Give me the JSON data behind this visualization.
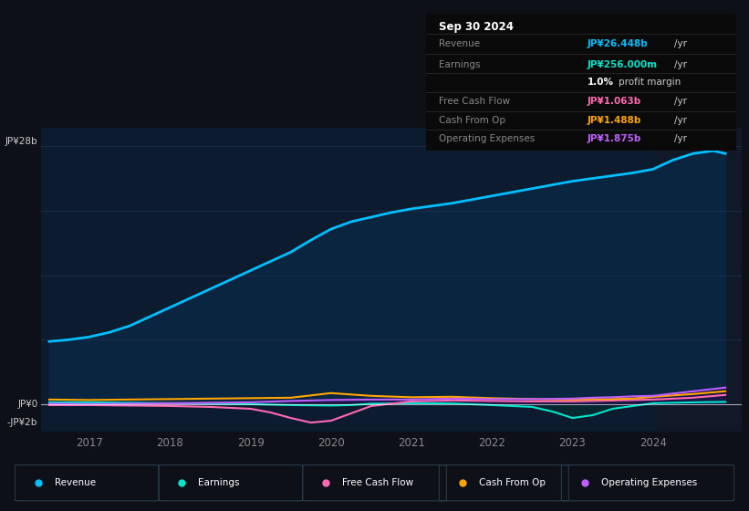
{
  "bg_color": "#0d1117",
  "plot_bg_color": "#0d1b2e",
  "grid_color": "#1e3050",
  "title_date": "Sep 30 2024",
  "y_label_top": "JP¥28b",
  "y_label_zero": "JP¥0",
  "y_label_neg": "-JP¥2b",
  "ylim_min": -3.0,
  "ylim_max": 30.0,
  "x_ticks": [
    2017,
    2018,
    2019,
    2020,
    2021,
    2022,
    2023,
    2024
  ],
  "shade_start_x": 2024.05,
  "revenue": {
    "x": [
      2016.5,
      2016.75,
      2017.0,
      2017.25,
      2017.5,
      2017.75,
      2018.0,
      2018.25,
      2018.5,
      2018.75,
      2019.0,
      2019.25,
      2019.5,
      2019.75,
      2020.0,
      2020.25,
      2020.5,
      2020.75,
      2021.0,
      2021.25,
      2021.5,
      2021.75,
      2022.0,
      2022.25,
      2022.5,
      2022.75,
      2023.0,
      2023.25,
      2023.5,
      2023.75,
      2024.0,
      2024.25,
      2024.5,
      2024.75,
      2024.9
    ],
    "y": [
      6.8,
      7.0,
      7.3,
      7.8,
      8.5,
      9.5,
      10.5,
      11.5,
      12.5,
      13.5,
      14.5,
      15.5,
      16.5,
      17.8,
      19.0,
      19.8,
      20.3,
      20.8,
      21.2,
      21.5,
      21.8,
      22.2,
      22.6,
      23.0,
      23.4,
      23.8,
      24.2,
      24.5,
      24.8,
      25.1,
      25.5,
      26.5,
      27.2,
      27.5,
      27.2
    ],
    "color": "#00bfff",
    "fill_color": "#0a2540",
    "linewidth": 2.0
  },
  "earnings": {
    "x": [
      2016.5,
      2017.0,
      2017.5,
      2018.0,
      2018.5,
      2019.0,
      2019.5,
      2020.0,
      2020.25,
      2020.5,
      2021.0,
      2021.5,
      2022.0,
      2022.5,
      2022.75,
      2023.0,
      2023.25,
      2023.5,
      2023.75,
      2024.0,
      2024.5,
      2024.9
    ],
    "y": [
      0.2,
      0.2,
      0.15,
      0.1,
      0.05,
      0.0,
      -0.1,
      -0.15,
      -0.1,
      0.05,
      0.1,
      0.08,
      -0.1,
      -0.3,
      -0.8,
      -1.5,
      -1.2,
      -0.5,
      -0.2,
      0.1,
      0.2,
      0.25
    ],
    "color": "#00e5cc",
    "linewidth": 1.5
  },
  "free_cash_flow": {
    "x": [
      2016.5,
      2017.0,
      2017.5,
      2018.0,
      2018.5,
      2019.0,
      2019.25,
      2019.5,
      2019.75,
      2020.0,
      2020.25,
      2020.5,
      2021.0,
      2021.5,
      2022.0,
      2022.5,
      2023.0,
      2023.5,
      2024.0,
      2024.5,
      2024.9
    ],
    "y": [
      -0.1,
      -0.1,
      -0.15,
      -0.2,
      -0.3,
      -0.5,
      -0.9,
      -1.5,
      -2.0,
      -1.8,
      -1.0,
      -0.2,
      0.3,
      0.4,
      0.35,
      0.3,
      0.3,
      0.4,
      0.5,
      0.7,
      1.0
    ],
    "color": "#ff69b4",
    "linewidth": 1.5
  },
  "cash_from_op": {
    "x": [
      2016.5,
      2017.0,
      2017.5,
      2018.0,
      2018.5,
      2019.0,
      2019.5,
      2020.0,
      2020.5,
      2021.0,
      2021.5,
      2022.0,
      2022.5,
      2023.0,
      2023.5,
      2023.75,
      2024.0,
      2024.5,
      2024.9
    ],
    "y": [
      0.5,
      0.45,
      0.5,
      0.55,
      0.6,
      0.65,
      0.7,
      1.2,
      0.9,
      0.75,
      0.8,
      0.65,
      0.55,
      0.5,
      0.55,
      0.6,
      0.8,
      1.1,
      1.4
    ],
    "color": "#ffa500",
    "linewidth": 1.5
  },
  "operating_expenses": {
    "x": [
      2016.5,
      2017.0,
      2017.5,
      2018.0,
      2018.5,
      2019.0,
      2019.5,
      2020.0,
      2020.5,
      2021.0,
      2021.25,
      2021.5,
      2022.0,
      2022.5,
      2023.0,
      2023.25,
      2023.5,
      2023.75,
      2024.0,
      2024.5,
      2024.9
    ],
    "y": [
      0.05,
      0.0,
      0.05,
      0.1,
      0.15,
      0.2,
      0.35,
      0.45,
      0.5,
      0.5,
      0.55,
      0.6,
      0.55,
      0.55,
      0.6,
      0.7,
      0.75,
      0.85,
      0.9,
      1.4,
      1.8
    ],
    "color": "#bf5fff",
    "linewidth": 1.5
  },
  "legend_items": [
    {
      "label": "Revenue",
      "color": "#00bfff"
    },
    {
      "label": "Earnings",
      "color": "#00e5cc"
    },
    {
      "label": "Free Cash Flow",
      "color": "#ff69b4"
    },
    {
      "label": "Cash From Op",
      "color": "#ffa500"
    },
    {
      "label": "Operating Expenses",
      "color": "#bf5fff"
    }
  ],
  "table_data": {
    "Revenue": {
      "color": "#00bfff",
      "val_colored": "JP¥26.448b",
      "val_plain": " /yr"
    },
    "Earnings": {
      "color": "#00e5cc",
      "val_colored": "JP¥256.000m",
      "val_plain": " /yr"
    },
    "profit_margin": {
      "bold": "1.0%",
      "rest": " profit margin"
    },
    "Free Cash Flow": {
      "color": "#ff69b4",
      "val_colored": "JP¥1.063b",
      "val_plain": " /yr"
    },
    "Cash From Op": {
      "color": "#ffa500",
      "val_colored": "JP¥1.488b",
      "val_plain": " /yr"
    },
    "Operating Expenses": {
      "color": "#bf5fff",
      "val_colored": "JP¥1.875b",
      "val_plain": " /yr"
    }
  }
}
